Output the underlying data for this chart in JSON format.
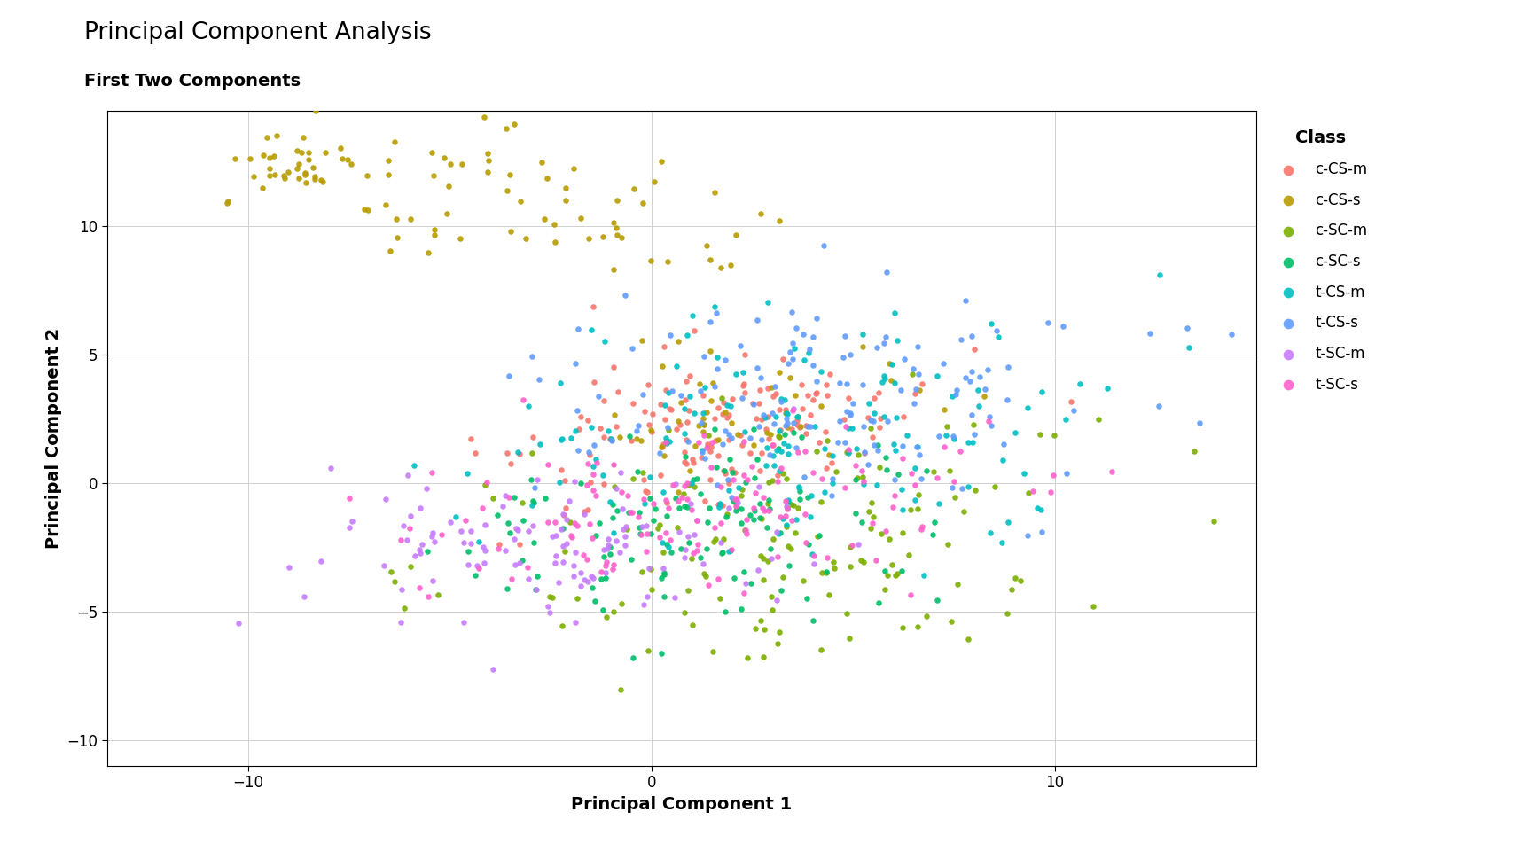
{
  "title": "Principal Component Analysis",
  "subtitle": "First Two Components",
  "xlabel": "Principal Component 1",
  "ylabel": "Principal Component 2",
  "xlim": [
    -13.5,
    15
  ],
  "ylim": [
    -11,
    14.5
  ],
  "xticks": [
    -10,
    0,
    10
  ],
  "yticks": [
    -10,
    -5,
    0,
    5,
    10
  ],
  "classes": [
    "c-CS-m",
    "c-CS-s",
    "c-SC-m",
    "c-SC-s",
    "t-CS-m",
    "t-CS-s",
    "t-SC-m",
    "t-SC-s"
  ],
  "colors": {
    "c-CS-m": "#F8766D",
    "c-CS-s": "#B79B00",
    "c-SC-m": "#7CAE00",
    "c-SC-s": "#00BE67",
    "t-CS-m": "#00BFC4",
    "t-CS-s": "#619CFF",
    "t-SC-m": "#C77CFF",
    "t-SC-s": "#FF61CC"
  },
  "background_color": "#FFFFFF",
  "grid_color": "#D0D0D0",
  "point_size": 22,
  "alpha": 0.9,
  "title_fontsize": 19,
  "subtitle_fontsize": 14,
  "axis_label_fontsize": 14,
  "tick_fontsize": 12,
  "legend_fontsize": 12,
  "legend_title_fontsize": 14,
  "random_seed": 42
}
